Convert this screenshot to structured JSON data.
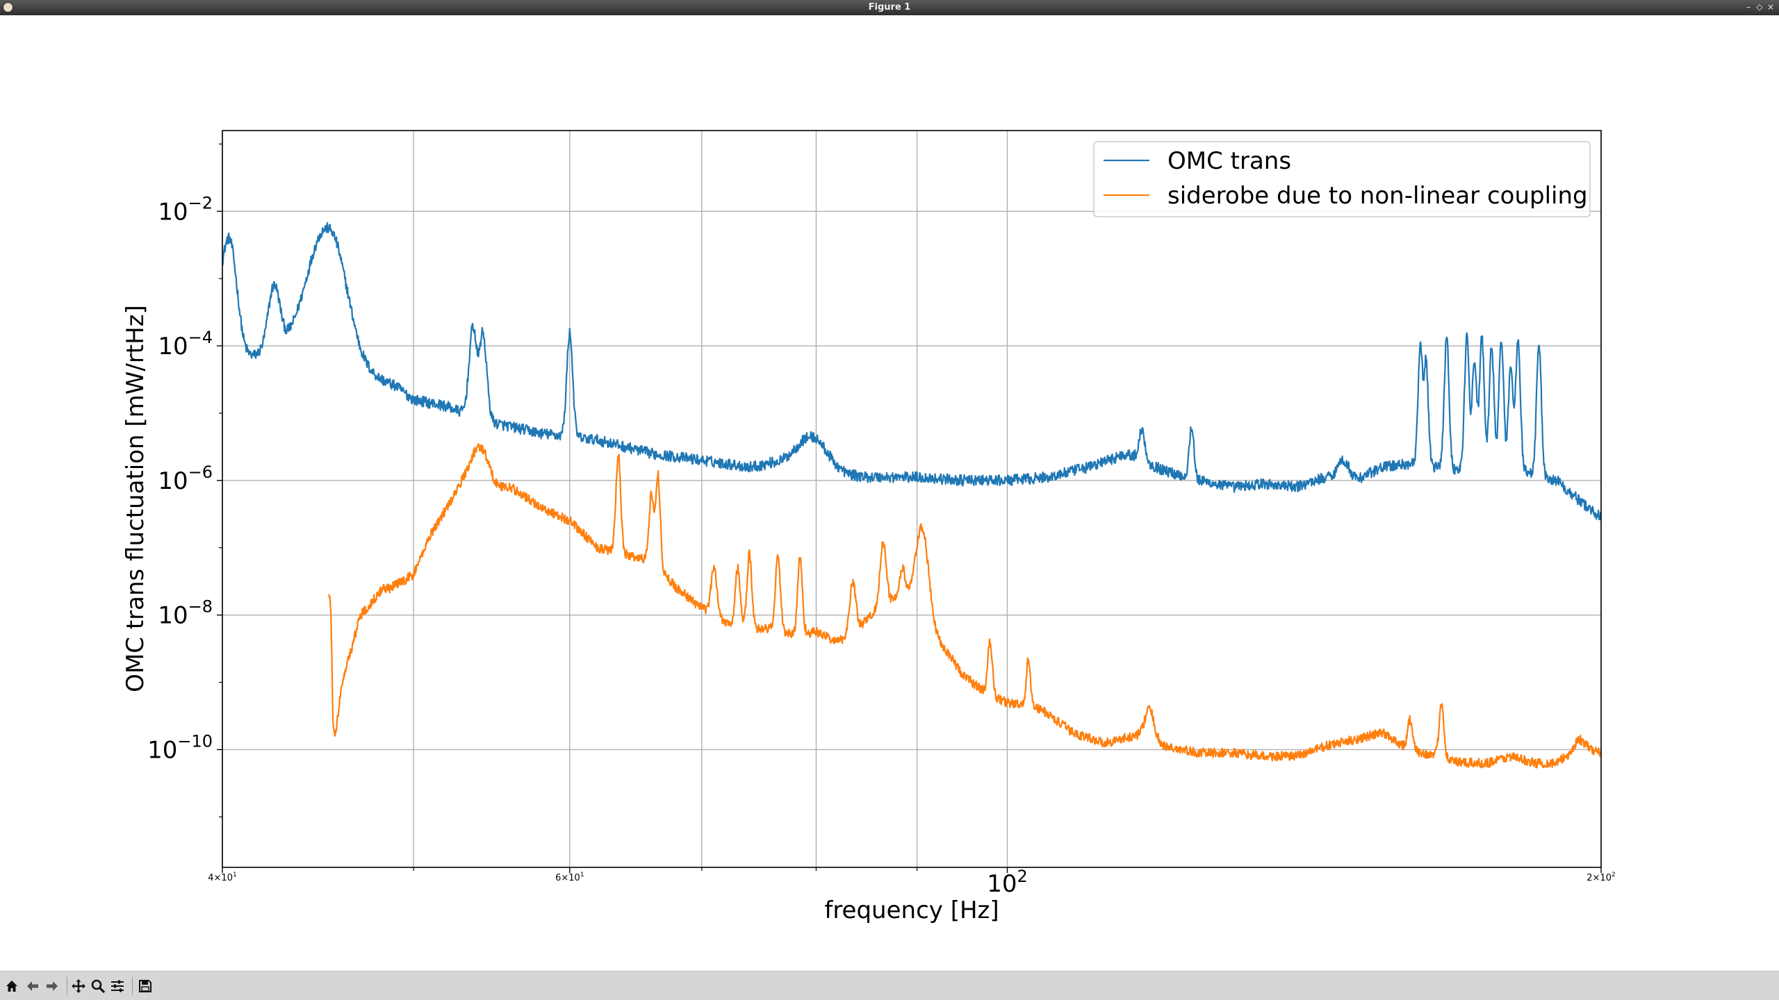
{
  "window": {
    "title": "Figure 1"
  },
  "toolbar": {
    "icons": [
      "home-icon",
      "back-arrow-icon",
      "forward-arrow-icon",
      "pan-icon",
      "zoom-icon",
      "configure-subplots-icon",
      "save-icon"
    ]
  },
  "colors": {
    "omc": "#1f77b4",
    "side": "#ff7f0e",
    "grid": "#b0b0b0"
  },
  "chart_data": {
    "type": "line",
    "xscale": "log",
    "yscale": "log",
    "xlim": [
      40,
      200
    ],
    "ylim_exp": [
      -11.75,
      -0.8
    ],
    "xlabel": "frequency [Hz]",
    "ylabel": "OMC trans fluctuation [mW/rtHz]",
    "grid": true,
    "legend_loc": "upper right",
    "x_major_ticks": [
      {
        "value": 40,
        "label_base": "4×10",
        "label_exp": "1"
      },
      {
        "value": 60,
        "label_base": "6×10",
        "label_exp": "1"
      },
      {
        "value": 100,
        "label_base": "10",
        "label_exp": "2"
      },
      {
        "value": 200,
        "label_base": "2×10",
        "label_exp": "2"
      }
    ],
    "x_minor_ticks": [
      50,
      70,
      80,
      90
    ],
    "y_ticks": [
      {
        "exp": -2,
        "label_base": "10",
        "label_exp": "−2"
      },
      {
        "exp": -4,
        "label_base": "10",
        "label_exp": "−4"
      },
      {
        "exp": -6,
        "label_base": "10",
        "label_exp": "−6"
      },
      {
        "exp": -8,
        "label_base": "10",
        "label_exp": "−8"
      },
      {
        "exp": -10,
        "label_base": "10",
        "label_exp": "−10"
      }
    ],
    "series": [
      {
        "name": "OMC trans",
        "color": "#1f77b4",
        "baseline": [
          [
            40,
            -3.6
          ],
          [
            40.5,
            -4.1
          ],
          [
            41,
            -4.2
          ],
          [
            42,
            -4.1
          ],
          [
            43,
            -4.0
          ],
          [
            44,
            -3.8
          ],
          [
            45,
            -3.5
          ],
          [
            45.5,
            -3.7
          ],
          [
            46,
            -4.1
          ],
          [
            47,
            -4.4
          ],
          [
            48,
            -4.5
          ],
          [
            49,
            -4.6
          ],
          [
            50,
            -4.8
          ],
          [
            51,
            -4.85
          ],
          [
            52,
            -4.9
          ],
          [
            53,
            -5.0
          ],
          [
            54,
            -5.1
          ],
          [
            55,
            -5.15
          ],
          [
            56,
            -5.2
          ],
          [
            58,
            -5.3
          ],
          [
            60,
            -5.35
          ],
          [
            62,
            -5.4
          ],
          [
            64,
            -5.5
          ],
          [
            66,
            -5.6
          ],
          [
            68,
            -5.65
          ],
          [
            70,
            -5.7
          ],
          [
            72,
            -5.75
          ],
          [
            74,
            -5.8
          ],
          [
            76,
            -5.75
          ],
          [
            78,
            -5.8
          ],
          [
            80,
            -5.9
          ],
          [
            85,
            -5.95
          ],
          [
            90,
            -5.95
          ],
          [
            95,
            -6.0
          ],
          [
            100,
            -6.0
          ],
          [
            105,
            -5.95
          ],
          [
            110,
            -5.8
          ],
          [
            115,
            -5.6
          ],
          [
            120,
            -5.85
          ],
          [
            125,
            -6.0
          ],
          [
            130,
            -6.1
          ],
          [
            135,
            -6.05
          ],
          [
            140,
            -6.1
          ],
          [
            145,
            -5.95
          ],
          [
            150,
            -6.0
          ],
          [
            155,
            -5.8
          ],
          [
            160,
            -5.75
          ],
          [
            170,
            -5.85
          ],
          [
            180,
            -5.8
          ],
          [
            190,
            -6.0
          ],
          [
            195,
            -6.3
          ],
          [
            200,
            -6.55
          ]
        ],
        "peaks": [
          [
            40.3,
            -2.4,
            0.004
          ],
          [
            42.5,
            -3.1,
            0.003
          ],
          [
            45.2,
            -2.25,
            0.009
          ],
          [
            53.6,
            -3.7,
            0.002
          ],
          [
            54.2,
            -3.8,
            0.002
          ],
          [
            60.0,
            -3.8,
            0.0015
          ],
          [
            79.5,
            -5.35,
            0.008
          ],
          [
            117.0,
            -5.25,
            0.0015
          ],
          [
            124.0,
            -5.2,
            0.0012
          ],
          [
            148.0,
            -5.7,
            0.003
          ],
          [
            162.0,
            -3.95,
            0.0012
          ],
          [
            163.0,
            -4.2,
            0.0012
          ],
          [
            167.0,
            -3.85,
            0.0012
          ],
          [
            171.0,
            -3.85,
            0.0012
          ],
          [
            172.5,
            -4.2,
            0.0012
          ],
          [
            174.0,
            -3.85,
            0.0012
          ],
          [
            176.0,
            -4.0,
            0.0012
          ],
          [
            178.0,
            -3.9,
            0.0012
          ],
          [
            180.0,
            -4.3,
            0.0012
          ],
          [
            181.5,
            -3.9,
            0.0012
          ],
          [
            186.0,
            -3.95,
            0.0012
          ]
        ],
        "noise": 0.08
      },
      {
        "name": "siderobe due to non-linear coupling",
        "color": "#ff7f0e",
        "x_start": 45.3,
        "baseline": [
          [
            45.3,
            -7.7
          ],
          [
            45.5,
            -10.1
          ],
          [
            46,
            -9.0
          ],
          [
            47,
            -8.0
          ],
          [
            48,
            -7.7
          ],
          [
            50,
            -7.4
          ],
          [
            51,
            -6.8
          ],
          [
            53,
            -6.0
          ],
          [
            54,
            -5.9
          ],
          [
            55,
            -6.1
          ],
          [
            56,
            -6.1
          ],
          [
            58,
            -6.4
          ],
          [
            60,
            -6.6
          ],
          [
            62,
            -7.0
          ],
          [
            64,
            -7.1
          ],
          [
            66,
            -7.2
          ],
          [
            68,
            -7.6
          ],
          [
            70,
            -7.9
          ],
          [
            72,
            -8.1
          ],
          [
            74,
            -8.2
          ],
          [
            76,
            -8.2
          ],
          [
            78,
            -8.3
          ],
          [
            80,
            -8.25
          ],
          [
            82,
            -8.4
          ],
          [
            84,
            -8.2
          ],
          [
            86,
            -7.9
          ],
          [
            88,
            -7.7
          ],
          [
            90,
            -7.7
          ],
          [
            92,
            -8.3
          ],
          [
            95,
            -8.9
          ],
          [
            98,
            -9.2
          ],
          [
            100,
            -9.3
          ],
          [
            104,
            -9.4
          ],
          [
            108,
            -9.75
          ],
          [
            112,
            -9.9
          ],
          [
            116,
            -9.8
          ],
          [
            118,
            -9.7
          ],
          [
            120,
            -9.95
          ],
          [
            125,
            -10.05
          ],
          [
            130,
            -10.05
          ],
          [
            135,
            -10.1
          ],
          [
            140,
            -10.1
          ],
          [
            145,
            -9.95
          ],
          [
            150,
            -9.85
          ],
          [
            155,
            -9.75
          ],
          [
            160,
            -10.0
          ],
          [
            165,
            -10.1
          ],
          [
            170,
            -10.2
          ],
          [
            175,
            -10.2
          ],
          [
            180,
            -10.1
          ],
          [
            185,
            -10.2
          ],
          [
            190,
            -10.2
          ],
          [
            193,
            -10.05
          ],
          [
            196,
            -9.95
          ],
          [
            200,
            -10.05
          ]
        ],
        "peaks": [
          [
            45.3,
            -7.7,
            0.0012
          ],
          [
            48.5,
            -7.6,
            0.003
          ],
          [
            54.0,
            -5.5,
            0.004
          ],
          [
            63.5,
            -5.6,
            0.0012
          ],
          [
            66.0,
            -6.2,
            0.0012
          ],
          [
            66.5,
            -5.9,
            0.0012
          ],
          [
            71.0,
            -7.3,
            0.0015
          ],
          [
            73.0,
            -7.3,
            0.0012
          ],
          [
            74.0,
            -7.1,
            0.0012
          ],
          [
            76.5,
            -7.1,
            0.0012
          ],
          [
            78.5,
            -7.15,
            0.0012
          ],
          [
            83.5,
            -7.5,
            0.0015
          ],
          [
            86.5,
            -6.9,
            0.0015
          ],
          [
            88.5,
            -7.3,
            0.0012
          ],
          [
            90.5,
            -6.7,
            0.003
          ],
          [
            98.0,
            -8.4,
            0.0012
          ],
          [
            102.5,
            -8.65,
            0.001
          ],
          [
            118.0,
            -9.4,
            0.002
          ],
          [
            160.0,
            -9.55,
            0.0012
          ],
          [
            166.0,
            -9.3,
            0.0012
          ],
          [
            195.0,
            -9.85,
            0.002
          ]
        ],
        "noise": 0.07
      }
    ]
  }
}
